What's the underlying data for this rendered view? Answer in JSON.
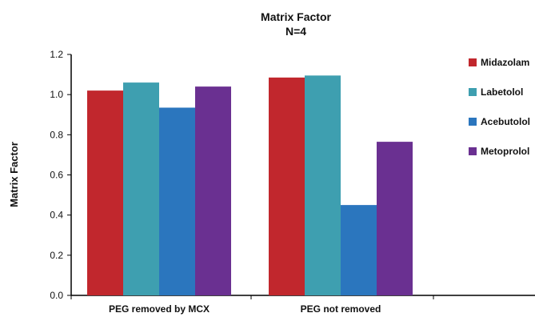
{
  "chart_data": {
    "type": "bar",
    "title": "Matrix Factor",
    "subtitle": "N=4",
    "xlabel": "",
    "ylabel": "Matrix Factor",
    "categories": [
      "PEG removed by MCX",
      "PEG not removed"
    ],
    "series": [
      {
        "name": "Midazolam",
        "values": [
          1.02,
          1.085
        ],
        "color": "#c1272d"
      },
      {
        "name": "Labetolol",
        "values": [
          1.06,
          1.095
        ],
        "color": "#3e9fb0"
      },
      {
        "name": "Acebutolol",
        "values": [
          0.935,
          0.45
        ],
        "color": "#2b76be"
      },
      {
        "name": "Metoprolol",
        "values": [
          1.04,
          0.765
        ],
        "color": "#6a3091"
      }
    ],
    "ylim": [
      0,
      1.2
    ],
    "yticks": [
      "0.0",
      "0.2",
      "0.4",
      "0.6",
      "0.8",
      "1.0",
      "1.2"
    ],
    "grid": false,
    "legend_position": "right"
  }
}
